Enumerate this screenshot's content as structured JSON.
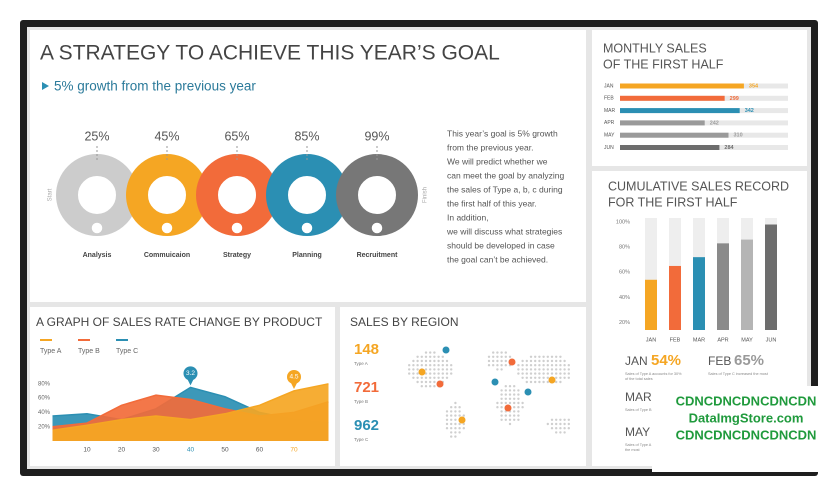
{
  "header": {
    "title": "A STRATEGY TO ACHIEVE THIS YEAR’S GOAL",
    "subtitle": "5% growth from the previous year"
  },
  "progress": {
    "start": "Start",
    "finish": "Finish",
    "steps": [
      {
        "percent": "25%",
        "label": "Analysis",
        "color": "#cccccc"
      },
      {
        "percent": "45%",
        "option": "Option 01",
        "label": "Commuicaion",
        "color": "#f5a623"
      },
      {
        "percent": "65%",
        "option": "Option 02",
        "label": "Strategy",
        "color": "#f26b3a"
      },
      {
        "percent": "85%",
        "option": "Option 03",
        "label": "Planning",
        "color": "#2b8fb3"
      },
      {
        "percent": "99%",
        "option": "Option 04",
        "label": "Recruitment",
        "color": "#777777"
      }
    ]
  },
  "description": [
    "This year’s goal is 5% growth",
    "from the previous year.",
    "We will predict whether we",
    "can meet the goal by analyzing",
    "the sales of Type a, b, c during",
    "the first half of this year.",
    "In addition,",
    "we will discuss what strategies",
    "should be developed in case",
    "the goal can’t be achieved."
  ],
  "chart_data": [
    {
      "type": "hbar",
      "title": [
        "MONTHLY SALES",
        "OF THE FIRST HALF"
      ],
      "categories": [
        "JAN",
        "FEB",
        "MAR",
        "APR",
        "MAY",
        "JUN"
      ],
      "values": [
        354,
        299,
        342,
        242,
        310,
        284
      ],
      "colors": [
        "#f5a623",
        "#f26b3a",
        "#2b8fb3",
        "#9a9a9a",
        "#9a9a9a",
        "#6d6d6d"
      ]
    },
    {
      "type": "bar",
      "title": [
        "CUMULATIVE SALES RECORD",
        "FOR THE FIRST HALF"
      ],
      "categories": [
        "JAN",
        "FEB",
        "MAR",
        "APR",
        "MAY",
        "JUN"
      ],
      "values": [
        54,
        65,
        72,
        83,
        86,
        98
      ],
      "colors": [
        "#f5a623",
        "#f26b3a",
        "#2b8fb3",
        "#8a8a8a",
        "#b5b5b5",
        "#6d6d6d"
      ],
      "ylim": [
        14,
        100
      ],
      "yticks": [
        {
          "value": 20,
          "label": "20%"
        },
        {
          "value": 40,
          "label": "40%"
        },
        {
          "value": 60,
          "label": "60%"
        },
        {
          "value": 80,
          "label": "80%"
        },
        {
          "value": 100,
          "label": "100%"
        }
      ],
      "highlights": [
        {
          "month": "JAN",
          "percent": "54%",
          "color": "#f5a623",
          "note": [
            "Sales of Type A accounts for 30%",
            "of the total sales"
          ]
        },
        {
          "month": "FEB",
          "percent": "65%",
          "color": "#9a9a9a",
          "note": [
            "Sales of Type C increased the most"
          ]
        },
        {
          "month": "MAR",
          "note": [
            "Sales of Type B increased"
          ]
        },
        {
          "month": "MAY",
          "note": [
            "Sales of Type A increased",
            "the most"
          ]
        }
      ]
    },
    {
      "type": "area",
      "title": "A GRAPH OF SALES RATE CHANGE BY PRODUCT",
      "x": [
        0,
        10,
        20,
        30,
        40,
        50,
        60,
        70,
        80
      ],
      "xlim": [
        0,
        80
      ],
      "xticks": [
        10,
        20,
        30,
        40,
        50,
        60,
        70
      ],
      "ylim": [
        0,
        100
      ],
      "yticks": [
        {
          "value": 20,
          "label": "20%"
        },
        {
          "value": 40,
          "label": "40%"
        },
        {
          "value": 60,
          "label": "60%"
        },
        {
          "value": 80,
          "label": "80%"
        }
      ],
      "series": [
        {
          "name": "Type C",
          "color": "#2b8fb3",
          "values": [
            35,
            38,
            30,
            45,
            75,
            62,
            40,
            30,
            25
          ]
        },
        {
          "name": "Type B",
          "color": "#f26b3a",
          "values": [
            20,
            25,
            50,
            64,
            58,
            45,
            35,
            40,
            55
          ]
        },
        {
          "name": "Type A",
          "color": "#f5a623",
          "values": [
            15,
            22,
            30,
            35,
            30,
            38,
            50,
            70,
            80
          ]
        }
      ],
      "annotations": [
        {
          "x": 40,
          "text": "3.2",
          "color": "#2b8fb3"
        },
        {
          "x": 70,
          "text": "4.5",
          "color": "#f5a623"
        }
      ]
    },
    {
      "type": "map",
      "title": "SALES BY REGION",
      "legend": [
        {
          "value": 148,
          "name": "Type A",
          "color": "#f5a623"
        },
        {
          "value": 721,
          "name": "Type B",
          "color": "#f26b3a"
        },
        {
          "value": 962,
          "name": "Type C",
          "color": "#2b8fb3"
        }
      ]
    }
  ],
  "watermark": [
    "CDNCDNCDNCDNCDN",
    "DataImgStore.com",
    "CDNCDNCDNCDNCDN"
  ]
}
